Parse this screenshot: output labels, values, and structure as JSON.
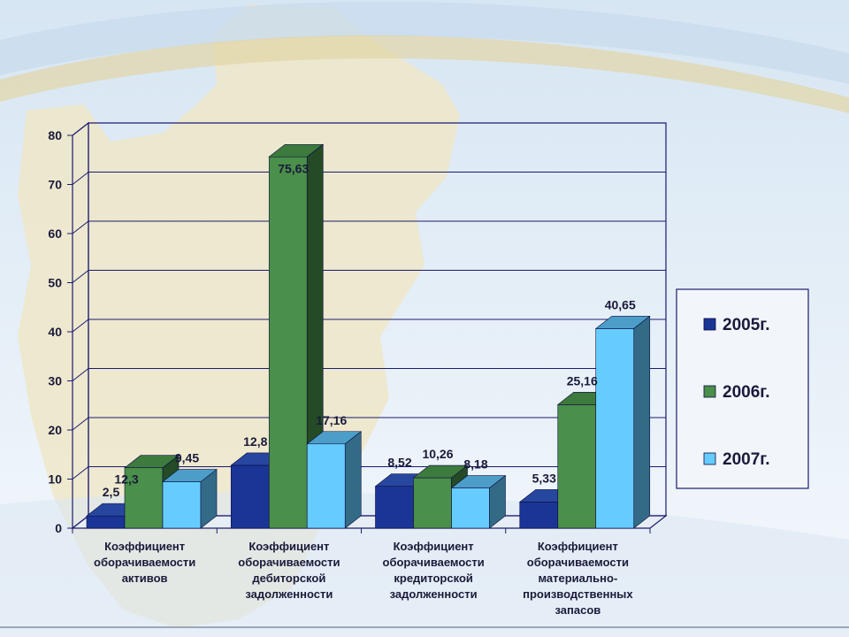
{
  "chart_data": {
    "type": "bar",
    "categories": [
      [
        "Коэффициент",
        "оборачиваемости",
        "активов"
      ],
      [
        "Коэффициент",
        "оборачиваемости",
        "дебиторской",
        "задолженности"
      ],
      [
        "Коэффициент",
        "оборачиваемости",
        "кредиторской",
        "задолженности"
      ],
      [
        "Коэффициент",
        "оборачиваемости",
        "материально-",
        "производственных",
        "запасов"
      ]
    ],
    "series": [
      {
        "name": "2005г.",
        "values": [
          2.5,
          12.8,
          8.52,
          5.33
        ],
        "labels": [
          "2,5",
          "12,8",
          "8,52",
          "5,33"
        ],
        "color": "#1a3596",
        "side": "#0f2066",
        "top": "#27479f"
      },
      {
        "name": "2006г.",
        "values": [
          12.3,
          75.63,
          10.26,
          25.16
        ],
        "labels": [
          "12,3",
          "75,63",
          "10,26",
          "25,16"
        ],
        "color": "#4a8f4a",
        "side": "#244a26",
        "top": "#3d7a3d"
      },
      {
        "name": "2007г.",
        "values": [
          9.45,
          17.16,
          8.18,
          40.65
        ],
        "labels": [
          "9,45",
          "17,16",
          "8,18",
          "40,65"
        ],
        "color": "#66ccff",
        "side": "#336b87",
        "top": "#4c9ec9"
      }
    ],
    "yticks": [
      "0",
      "10",
      "20",
      "30",
      "40",
      "50",
      "60",
      "70",
      "80"
    ],
    "ylim": [
      0,
      80
    ],
    "grid": true,
    "legend_position": "right"
  }
}
